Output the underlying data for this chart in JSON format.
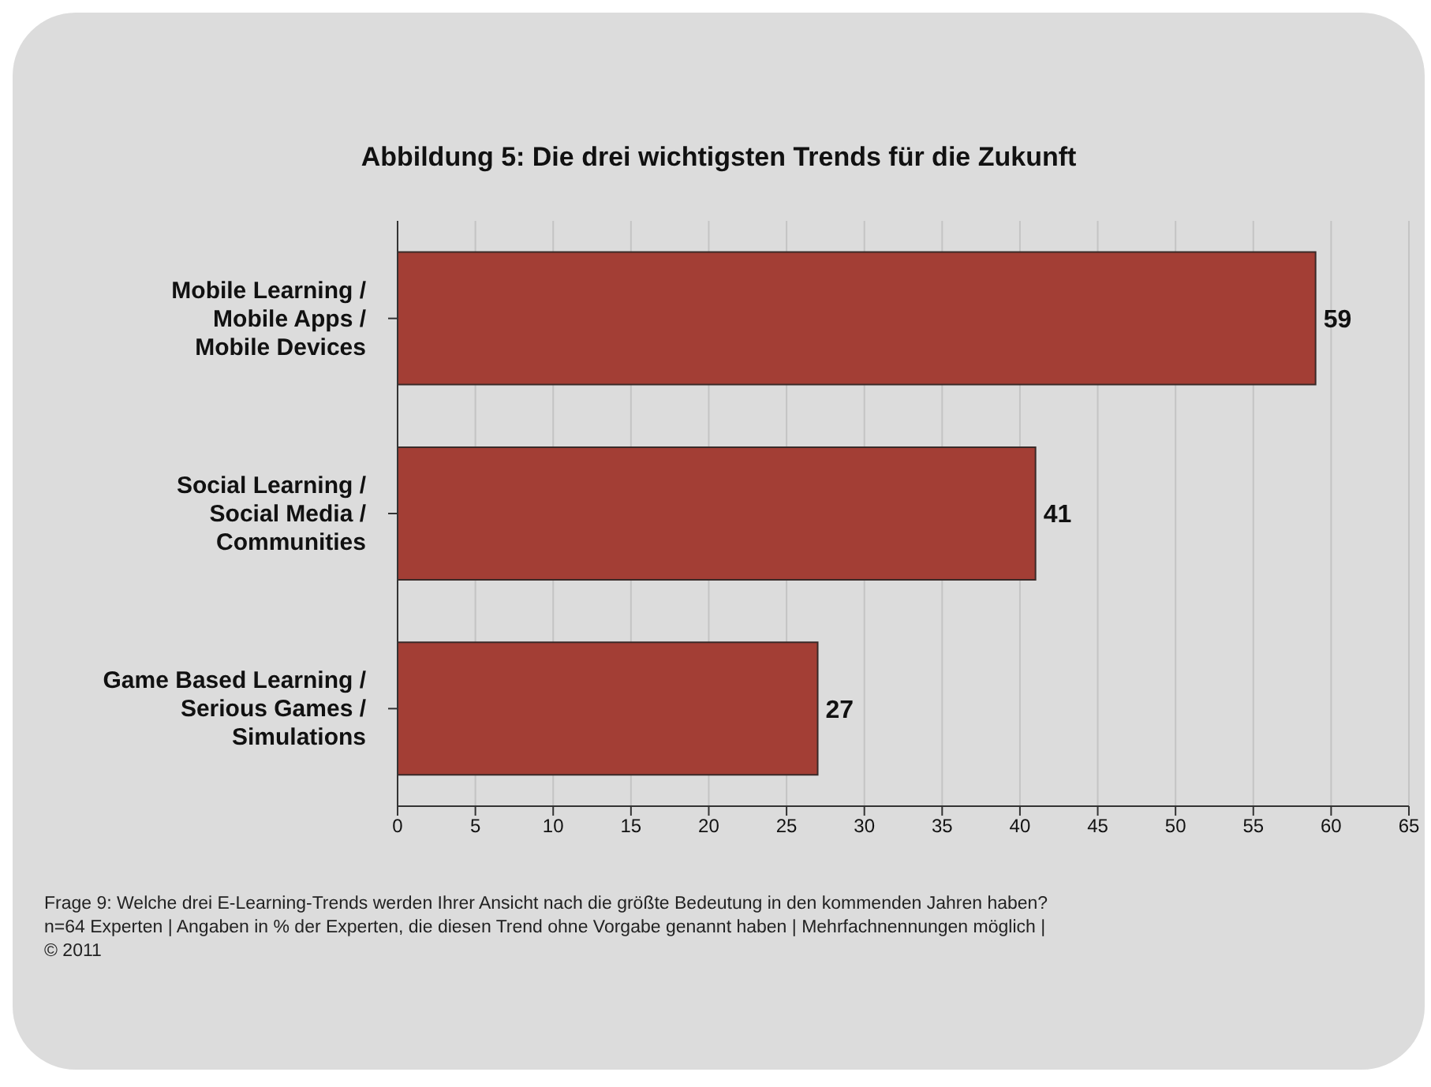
{
  "chart_data": {
    "type": "bar",
    "orientation": "horizontal",
    "title": "Abbildung 5: Die drei wichtigsten Trends für die Zukunft",
    "categories": [
      "Mobile Learning / Mobile Apps / Mobile Devices",
      "Social Learning / Social Media / Communities",
      "Game Based Learning / Serious Games / Simulations"
    ],
    "values": [
      59,
      41,
      27
    ],
    "color": "#a33e35",
    "data_labels": true,
    "xlim": [
      0,
      65
    ],
    "xticks": [
      0,
      5,
      10,
      15,
      20,
      25,
      30,
      35,
      40,
      45,
      50,
      55,
      60,
      65
    ],
    "grid": "x",
    "annotations": [
      "Frage 9: Welche drei E-Learning-Trends werden Ihrer Ansicht nach die größte Bedeutung in den kommenden Jahren haben?",
      "n=64 Experten | Angaben in % der Experten, die diesen Trend ohne Vorgabe genannt haben | Mehrfachnennungen möglich |",
      "© 2011"
    ]
  }
}
